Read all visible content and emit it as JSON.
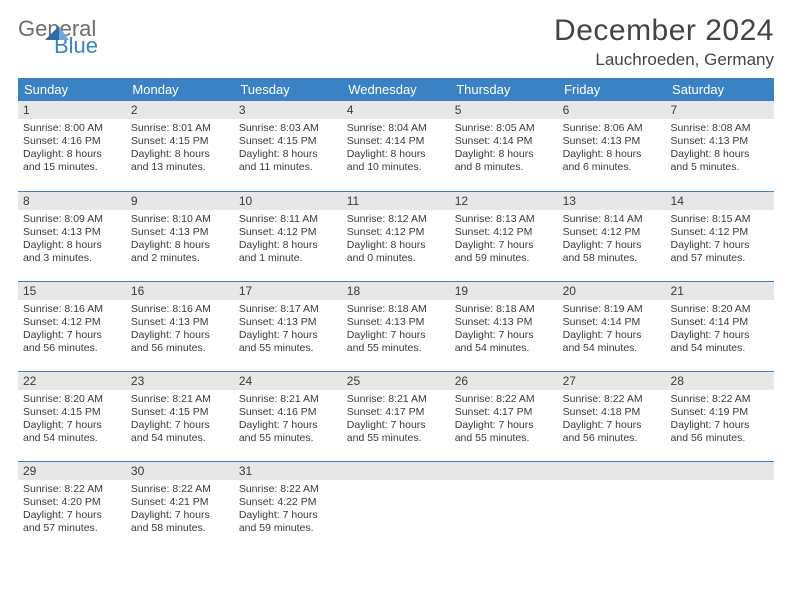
{
  "brand": {
    "part1": "General",
    "part2": "Blue"
  },
  "title": "December 2024",
  "location": "Lauchroeden, Germany",
  "colors": {
    "header_bg": "#3b82c4",
    "header_text": "#ffffff",
    "daynum_bg": "#e7e7e7",
    "row_divider": "#3b82c4",
    "body_text": "#3a3a3a",
    "logo_gray": "#6d6d6d",
    "logo_blue": "#3b82c4"
  },
  "weekdays": [
    "Sunday",
    "Monday",
    "Tuesday",
    "Wednesday",
    "Thursday",
    "Friday",
    "Saturday"
  ],
  "days": [
    {
      "n": "1",
      "sr": "8:00 AM",
      "ss": "4:16 PM",
      "dl": "8 hours and 15 minutes."
    },
    {
      "n": "2",
      "sr": "8:01 AM",
      "ss": "4:15 PM",
      "dl": "8 hours and 13 minutes."
    },
    {
      "n": "3",
      "sr": "8:03 AM",
      "ss": "4:15 PM",
      "dl": "8 hours and 11 minutes."
    },
    {
      "n": "4",
      "sr": "8:04 AM",
      "ss": "4:14 PM",
      "dl": "8 hours and 10 minutes."
    },
    {
      "n": "5",
      "sr": "8:05 AM",
      "ss": "4:14 PM",
      "dl": "8 hours and 8 minutes."
    },
    {
      "n": "6",
      "sr": "8:06 AM",
      "ss": "4:13 PM",
      "dl": "8 hours and 6 minutes."
    },
    {
      "n": "7",
      "sr": "8:08 AM",
      "ss": "4:13 PM",
      "dl": "8 hours and 5 minutes."
    },
    {
      "n": "8",
      "sr": "8:09 AM",
      "ss": "4:13 PM",
      "dl": "8 hours and 3 minutes."
    },
    {
      "n": "9",
      "sr": "8:10 AM",
      "ss": "4:13 PM",
      "dl": "8 hours and 2 minutes."
    },
    {
      "n": "10",
      "sr": "8:11 AM",
      "ss": "4:12 PM",
      "dl": "8 hours and 1 minute."
    },
    {
      "n": "11",
      "sr": "8:12 AM",
      "ss": "4:12 PM",
      "dl": "8 hours and 0 minutes."
    },
    {
      "n": "12",
      "sr": "8:13 AM",
      "ss": "4:12 PM",
      "dl": "7 hours and 59 minutes."
    },
    {
      "n": "13",
      "sr": "8:14 AM",
      "ss": "4:12 PM",
      "dl": "7 hours and 58 minutes."
    },
    {
      "n": "14",
      "sr": "8:15 AM",
      "ss": "4:12 PM",
      "dl": "7 hours and 57 minutes."
    },
    {
      "n": "15",
      "sr": "8:16 AM",
      "ss": "4:12 PM",
      "dl": "7 hours and 56 minutes."
    },
    {
      "n": "16",
      "sr": "8:16 AM",
      "ss": "4:13 PM",
      "dl": "7 hours and 56 minutes."
    },
    {
      "n": "17",
      "sr": "8:17 AM",
      "ss": "4:13 PM",
      "dl": "7 hours and 55 minutes."
    },
    {
      "n": "18",
      "sr": "8:18 AM",
      "ss": "4:13 PM",
      "dl": "7 hours and 55 minutes."
    },
    {
      "n": "19",
      "sr": "8:18 AM",
      "ss": "4:13 PM",
      "dl": "7 hours and 54 minutes."
    },
    {
      "n": "20",
      "sr": "8:19 AM",
      "ss": "4:14 PM",
      "dl": "7 hours and 54 minutes."
    },
    {
      "n": "21",
      "sr": "8:20 AM",
      "ss": "4:14 PM",
      "dl": "7 hours and 54 minutes."
    },
    {
      "n": "22",
      "sr": "8:20 AM",
      "ss": "4:15 PM",
      "dl": "7 hours and 54 minutes."
    },
    {
      "n": "23",
      "sr": "8:21 AM",
      "ss": "4:15 PM",
      "dl": "7 hours and 54 minutes."
    },
    {
      "n": "24",
      "sr": "8:21 AM",
      "ss": "4:16 PM",
      "dl": "7 hours and 55 minutes."
    },
    {
      "n": "25",
      "sr": "8:21 AM",
      "ss": "4:17 PM",
      "dl": "7 hours and 55 minutes."
    },
    {
      "n": "26",
      "sr": "8:22 AM",
      "ss": "4:17 PM",
      "dl": "7 hours and 55 minutes."
    },
    {
      "n": "27",
      "sr": "8:22 AM",
      "ss": "4:18 PM",
      "dl": "7 hours and 56 minutes."
    },
    {
      "n": "28",
      "sr": "8:22 AM",
      "ss": "4:19 PM",
      "dl": "7 hours and 56 minutes."
    },
    {
      "n": "29",
      "sr": "8:22 AM",
      "ss": "4:20 PM",
      "dl": "7 hours and 57 minutes."
    },
    {
      "n": "30",
      "sr": "8:22 AM",
      "ss": "4:21 PM",
      "dl": "7 hours and 58 minutes."
    },
    {
      "n": "31",
      "sr": "8:22 AM",
      "ss": "4:22 PM",
      "dl": "7 hours and 59 minutes."
    }
  ],
  "labels": {
    "sunrise": "Sunrise: ",
    "sunset": "Sunset: ",
    "daylight": "Daylight: "
  },
  "layout": {
    "start_weekday": 0,
    "rows": 5,
    "cols": 7
  }
}
